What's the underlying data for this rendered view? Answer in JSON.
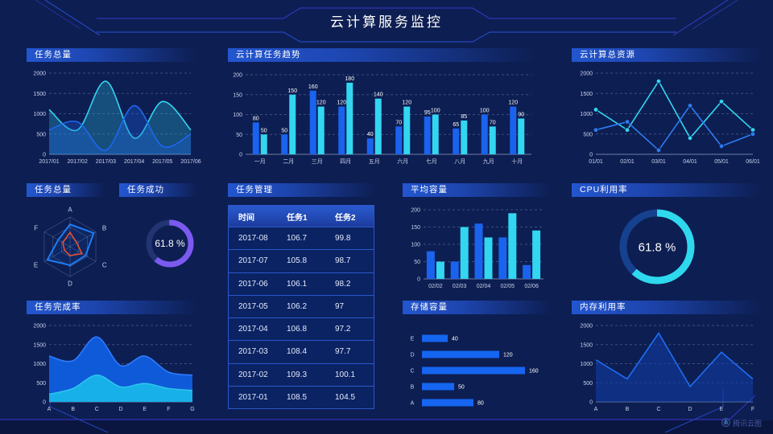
{
  "header": {
    "title": "云计算服务监控"
  },
  "watermark": {
    "label": "腾讯云图"
  },
  "colors": {
    "blue": "#1a63ee",
    "cyan": "#32d6f0",
    "purple": "#7b5af0",
    "radar_red": "#f4502e",
    "axis_text": "#c9d2ec"
  },
  "table": {
    "title": "任务管理",
    "columns": [
      "时间",
      "任务1",
      "任务2"
    ],
    "rows": [
      [
        "2017-08",
        "106.7",
        "99.8"
      ],
      [
        "2017-07",
        "105.8",
        "98.7"
      ],
      [
        "2017-06",
        "106.1",
        "98.2"
      ],
      [
        "2017-05",
        "106.2",
        "97"
      ],
      [
        "2017-04",
        "106.8",
        "97.2"
      ],
      [
        "2017-03",
        "108.4",
        "97.7"
      ],
      [
        "2017-02",
        "109.3",
        "100.1"
      ],
      [
        "2017-01",
        "108.5",
        "104.5"
      ]
    ]
  },
  "chart_data": [
    {
      "id": "task_total_line",
      "type": "area",
      "title": "任务总量",
      "smooth": true,
      "x": [
        "2017/01",
        "2017/02",
        "2017/03",
        "2017/04",
        "2017/05",
        "2017/06"
      ],
      "yticks": [
        0,
        500,
        1000,
        1500,
        2000
      ],
      "ylim": [
        0,
        2000
      ],
      "series": [
        {
          "name": "series-cyan",
          "color": "#32d6f0",
          "fill": "rgba(46,206,235,0.28)",
          "values": [
            1100,
            600,
            1800,
            400,
            1300,
            600
          ]
        },
        {
          "name": "series-blue",
          "color": "#1f66f0",
          "fill": "rgba(31,102,240,0.30)",
          "values": [
            600,
            800,
            100,
            1200,
            200,
            500
          ]
        }
      ]
    },
    {
      "id": "task_trend_bar",
      "type": "bar",
      "title": "云计算任务趋势",
      "value_labels": true,
      "x": [
        "一月",
        "二月",
        "三月",
        "四月",
        "五月",
        "六月",
        "七月",
        "八月",
        "九月",
        "十月"
      ],
      "yticks": [
        0,
        50,
        100,
        150,
        200
      ],
      "ylim": [
        0,
        200
      ],
      "series": [
        {
          "name": "series-blue",
          "color": "#1a63ee",
          "values": [
            80,
            50,
            160,
            120,
            40,
            70,
            95,
            65,
            100,
            120
          ]
        },
        {
          "name": "series-cyan",
          "color": "#32d6f0",
          "values": [
            50,
            150,
            120,
            180,
            140,
            120,
            100,
            85,
            70,
            90
          ]
        }
      ]
    },
    {
      "id": "total_resources_line",
      "type": "line",
      "title": "云计算总资源",
      "markers": true,
      "x": [
        "01/01",
        "02/01",
        "03/01",
        "04/01",
        "05/01",
        "06/01"
      ],
      "yticks": [
        0,
        500,
        1000,
        1500,
        2000
      ],
      "ylim": [
        0,
        2000
      ],
      "series": [
        {
          "name": "series-cyan",
          "color": "#32d6f0",
          "values": [
            1100,
            600,
            1800,
            400,
            1300,
            600
          ]
        },
        {
          "name": "series-blue",
          "color": "#2e7bf0",
          "values": [
            600,
            800,
            100,
            1200,
            200,
            500
          ]
        }
      ]
    },
    {
      "id": "task_radar",
      "type": "radar",
      "title": "任务总量",
      "axes": [
        "A",
        "B",
        "C",
        "D",
        "E",
        "F"
      ],
      "max": 100,
      "series": [
        {
          "name": "radar-blue",
          "color": "#1f7bf4",
          "values": [
            75,
            92,
            60,
            62,
            88,
            46
          ]
        },
        {
          "name": "radar-red",
          "color": "#f4502e",
          "values": [
            48,
            26,
            46,
            30,
            22,
            28
          ]
        }
      ]
    },
    {
      "id": "task_success_gauge",
      "type": "donut",
      "title": "任务成功",
      "percent": 61.8,
      "label": "61.8 %",
      "color": "#7b5af0",
      "track": "#223471"
    },
    {
      "id": "avg_capacity_bar",
      "type": "bar",
      "title": "平均容量",
      "x": [
        "02/02",
        "02/03",
        "02/04",
        "02/05",
        "02/06"
      ],
      "yticks": [
        0,
        50,
        100,
        150,
        200
      ],
      "ylim": [
        0,
        200
      ],
      "series": [
        {
          "name": "series-blue",
          "color": "#1a63ee",
          "values": [
            80,
            50,
            160,
            120,
            40
          ]
        },
        {
          "name": "series-cyan",
          "color": "#32d6f0",
          "values": [
            50,
            150,
            120,
            190,
            140
          ]
        }
      ]
    },
    {
      "id": "cpu_gauge",
      "type": "donut",
      "title": "CPU利用率",
      "percent": 61.8,
      "label": "61.8 %",
      "color": "#2ed9ee",
      "track": "#16418f"
    },
    {
      "id": "completion_area",
      "type": "stacked_area",
      "title": "任务完成率",
      "smooth": true,
      "x": [
        "A",
        "B",
        "C",
        "D",
        "E",
        "F",
        "G"
      ],
      "yticks": [
        0,
        500,
        1000,
        1500,
        2000
      ],
      "ylim": [
        0,
        2000
      ],
      "series": [
        {
          "name": "outer-blue",
          "color": "#2f7bff",
          "fill": "#0f5ad8",
          "values": [
            1200,
            1080,
            1700,
            950,
            1200,
            780,
            700
          ]
        },
        {
          "name": "inner-cyan",
          "color": "#2bc4ef",
          "fill": "#18b0e8",
          "values": [
            200,
            350,
            700,
            390,
            480,
            350,
            300
          ]
        }
      ]
    },
    {
      "id": "storage_hbar",
      "type": "hbar",
      "title": "存储容量",
      "categories": [
        "E",
        "D",
        "C",
        "B",
        "A"
      ],
      "values": [
        40,
        120,
        160,
        50,
        80
      ],
      "xmax": 160,
      "color": "#1565f0"
    },
    {
      "id": "memory_line",
      "type": "area",
      "title": "内存利用率",
      "smooth": false,
      "x": [
        "A",
        "B",
        "C",
        "D",
        "E",
        "F"
      ],
      "yticks": [
        0,
        500,
        1000,
        1500,
        2000
      ],
      "ylim": [
        0,
        2000
      ],
      "series": [
        {
          "name": "series-blue",
          "color": "#1f6df5",
          "fill": "rgba(17,62,170,0.55)",
          "values": [
            1100,
            600,
            1800,
            400,
            1300,
            600
          ]
        }
      ]
    }
  ]
}
